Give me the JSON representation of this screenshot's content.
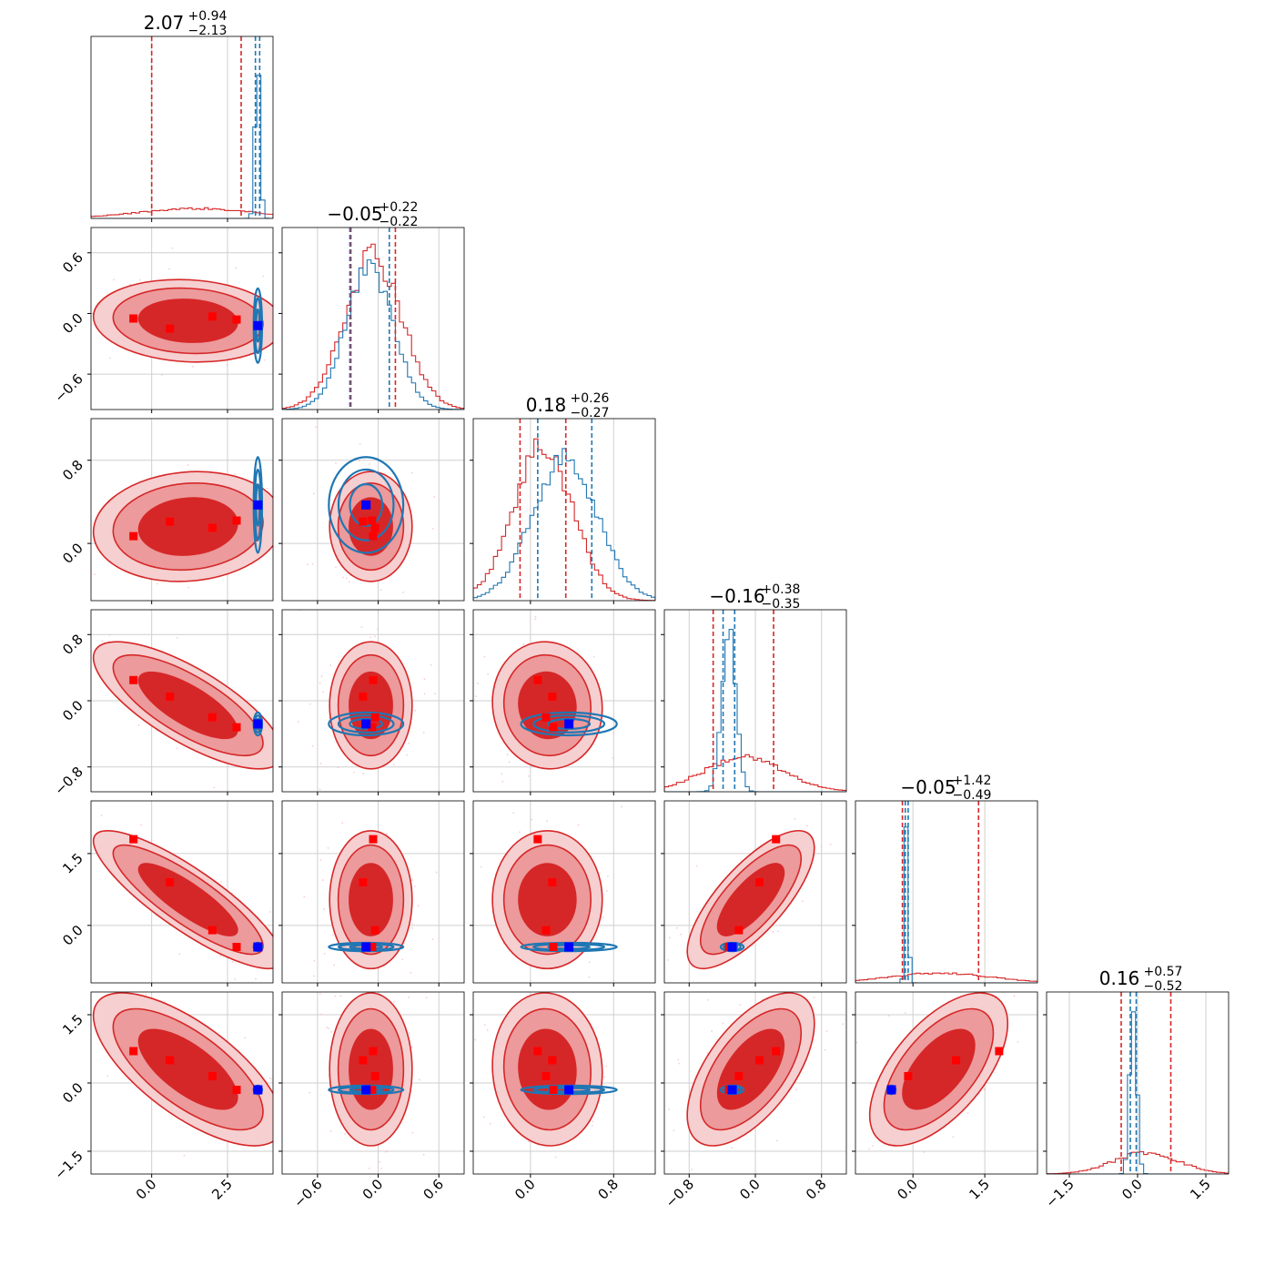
{
  "colors": {
    "red": "#d62728",
    "red_fill_dark": "#d62728",
    "red_fill_light": "#ec9a9b",
    "red_fill_lightest": "#f6cfd0",
    "blue": "#1f77b4",
    "marker_blue": "#0000ff",
    "marker_red": "#ff0000",
    "grid": "#cfcfcf"
  },
  "chart_data": {
    "type": "corner",
    "n_params": 6,
    "series": [
      {
        "name": "",
        "color": "red"
      },
      {
        "name": "",
        "color": "blue"
      }
    ],
    "titles": [
      {
        "main": "2.07",
        "plus": "+0.94",
        "minus": "−2.13"
      },
      {
        "main": "−0.05",
        "plus": "+0.22",
        "minus": "−0.22"
      },
      {
        "main": "0.18",
        "plus": "+0.26",
        "minus": "−0.27"
      },
      {
        "main": "−0.16",
        "plus": "+0.38",
        "minus": "−0.35"
      },
      {
        "main": "−0.05",
        "plus": "+1.42",
        "minus": "−0.49"
      },
      {
        "main": "0.16",
        "plus": "+0.57",
        "minus": "−0.52"
      }
    ],
    "x_ticks": [
      [
        {
          "v": 0.0,
          "label": "0.0"
        },
        {
          "v": 2.5,
          "label": "2.5"
        }
      ],
      [
        {
          "v": -0.6,
          "label": "−0.6"
        },
        {
          "v": 0.0,
          "label": "0.0"
        },
        {
          "v": 0.6,
          "label": "0.6"
        }
      ],
      [
        {
          "v": 0.0,
          "label": "0.0"
        },
        {
          "v": 0.8,
          "label": "0.8"
        }
      ],
      [
        {
          "v": -0.8,
          "label": "−0.8"
        },
        {
          "v": 0.0,
          "label": "0.0"
        },
        {
          "v": 0.8,
          "label": "0.8"
        }
      ],
      [
        {
          "v": 0.0,
          "label": "0.0"
        },
        {
          "v": 1.5,
          "label": "1.5"
        }
      ],
      [
        {
          "v": -1.5,
          "label": "−1.5"
        },
        {
          "v": 0.0,
          "label": "0.0"
        },
        {
          "v": 1.5,
          "label": "1.5"
        }
      ]
    ],
    "y_ticks": [
      [],
      [
        {
          "v": 0.6,
          "label": "0.6"
        },
        {
          "v": 0.0,
          "label": "0.0"
        },
        {
          "v": -0.6,
          "label": "−0.6"
        }
      ],
      [
        {
          "v": 0.8,
          "label": "0.8"
        },
        {
          "v": 0.0,
          "label": "0.0"
        }
      ],
      [
        {
          "v": 0.8,
          "label": "0.8"
        },
        {
          "v": 0.0,
          "label": "0.0"
        },
        {
          "v": -0.8,
          "label": "−0.8"
        }
      ],
      [
        {
          "v": 1.5,
          "label": "1.5"
        },
        {
          "v": 0.0,
          "label": "0.0"
        }
      ],
      [
        {
          "v": 1.5,
          "label": "1.5"
        },
        {
          "v": 0.0,
          "label": "0.0"
        },
        {
          "v": -1.5,
          "label": "−1.5"
        }
      ]
    ],
    "ranges": [
      [
        -2.0,
        4.0
      ],
      [
        -0.95,
        0.85
      ],
      [
        -0.55,
        1.2
      ],
      [
        -1.1,
        1.1
      ],
      [
        -1.2,
        2.6
      ],
      [
        -2.0,
        2.0
      ]
    ],
    "red_quantiles": [
      [
        0.0,
        2.95
      ],
      [
        -0.27,
        0.17
      ],
      [
        -0.1,
        0.34
      ],
      [
        -0.51,
        0.22
      ],
      [
        -0.22,
        1.37
      ],
      [
        -0.36,
        0.73
      ]
    ],
    "blue_quantiles": [
      [
        3.42,
        3.56
      ],
      [
        -0.28,
        0.11
      ],
      [
        0.07,
        0.59
      ],
      [
        -0.39,
        -0.25
      ],
      [
        -0.16,
        -0.1
      ],
      [
        -0.16,
        -0.03
      ]
    ],
    "red_points": [
      [
        -0.6,
        -0.05,
        0.07,
        0.25,
        1.8,
        0.7
      ],
      [
        0.6,
        -0.15,
        0.21,
        0.05,
        0.9,
        0.5
      ],
      [
        2.0,
        -0.03,
        0.15,
        -0.2,
        -0.1,
        0.15
      ],
      [
        2.8,
        -0.06,
        0.22,
        -0.32,
        -0.45,
        -0.15
      ]
    ],
    "blue_point": [
      3.5,
      -0.12,
      0.37,
      -0.28,
      -0.45,
      -0.15
    ],
    "red_widths": [
      1.3,
      0.17,
      0.22,
      0.32,
      0.6,
      0.7
    ],
    "red_correlations": [
      [
        0,
        1,
        -0.1
      ],
      [
        0,
        2,
        0.1
      ],
      [
        0,
        3,
        -0.75
      ],
      [
        0,
        4,
        -0.85
      ],
      [
        0,
        5,
        -0.7
      ],
      [
        1,
        2,
        0.0
      ],
      [
        1,
        3,
        0.0
      ],
      [
        1,
        4,
        0.0
      ],
      [
        1,
        5,
        0.0
      ],
      [
        2,
        3,
        -0.05
      ],
      [
        2,
        4,
        0.0
      ],
      [
        2,
        5,
        -0.05
      ],
      [
        3,
        4,
        0.75
      ],
      [
        3,
        5,
        0.6
      ],
      [
        4,
        5,
        0.6
      ]
    ],
    "blue_widths": [
      0.05,
      0.16,
      0.2,
      0.06,
      0.025,
      0.04
    ],
    "grid": true
  }
}
